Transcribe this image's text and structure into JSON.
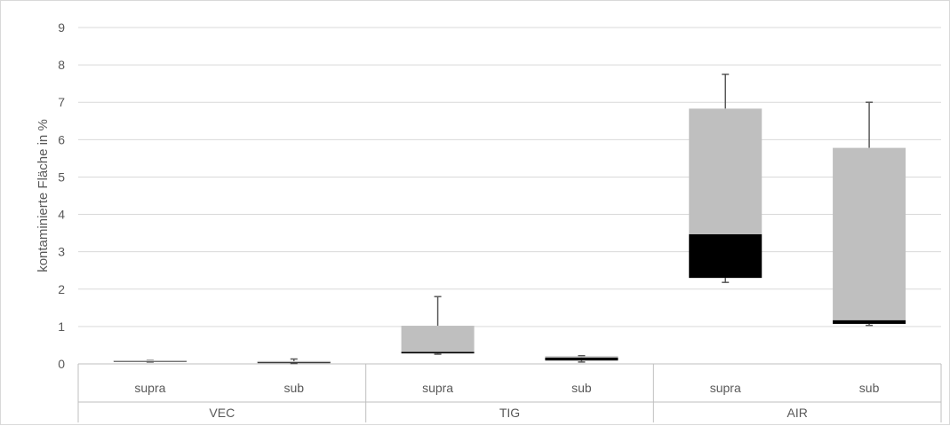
{
  "chart_data": {
    "type": "box",
    "ylabel": "kontaminierte Fläche in %",
    "ylim": [
      0,
      9
    ],
    "yticks": [
      0,
      1,
      2,
      3,
      4,
      5,
      6,
      7,
      8,
      9
    ],
    "grid": true,
    "groups": [
      "VEC",
      "TIG",
      "AIR"
    ],
    "categories": [
      "supra",
      "sub",
      "supra",
      "sub",
      "supra",
      "sub"
    ],
    "boxes": [
      {
        "group": "VEC",
        "category": "supra",
        "min": 0.05,
        "q1": 0.05,
        "median": 0.06,
        "q3": 0.07,
        "max": 0.09
      },
      {
        "group": "VEC",
        "category": "sub",
        "min": 0.01,
        "q1": 0.02,
        "median": 0.04,
        "q3": 0.06,
        "max": 0.13
      },
      {
        "group": "TIG",
        "category": "supra",
        "min": 0.26,
        "q1": 0.28,
        "median": 0.32,
        "q3": 1.02,
        "max": 1.8
      },
      {
        "group": "TIG",
        "category": "sub",
        "min": 0.05,
        "q1": 0.09,
        "median": 0.17,
        "q3": 0.17,
        "max": 0.22
      },
      {
        "group": "AIR",
        "category": "supra",
        "min": 2.18,
        "q1": 2.3,
        "median": 3.47,
        "q3": 6.83,
        "max": 7.75
      },
      {
        "group": "AIR",
        "category": "sub",
        "min": 1.03,
        "q1": 1.07,
        "median": 1.17,
        "q3": 5.78,
        "max": 7.0
      }
    ],
    "colors": {
      "lower_box": "#000000",
      "upper_box": "#bfbfbf",
      "whisker": "#595959",
      "grid": "#d9d9d9",
      "axis": "#bfbfbf",
      "text": "#595959"
    }
  }
}
